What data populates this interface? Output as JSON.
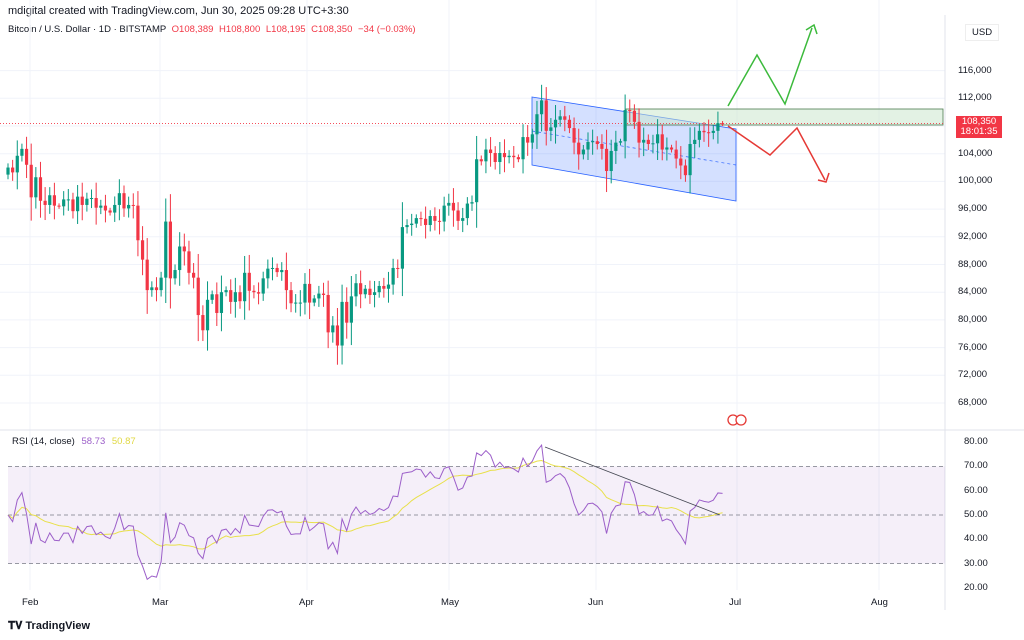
{
  "header": {
    "credit": "mdigital created with TradingView.com, Jun 30, 2025 09:28 UTC+3:30"
  },
  "legend": {
    "symbol": "Bitcoin / U.S. Dollar · 1D · BITSTAMP",
    "open": "O108,389",
    "high": "H108,800",
    "low": "L108,195",
    "close": "C108,350",
    "change": "−34 (−0.03%)"
  },
  "price_scale": {
    "currency": "USD",
    "ticks": [
      "116,000",
      "112,000",
      "104,000",
      "100,000",
      "96,000",
      "92,000",
      "88,000",
      "84,000",
      "80,000",
      "76,000",
      "72,000",
      "68,000"
    ],
    "last_price": "108,350",
    "countdown": "18:01:35"
  },
  "rsi": {
    "label": "RSI (14, close)",
    "value": "58.73",
    "ma_value": "50.87",
    "ticks": [
      "80.00",
      "70.00",
      "60.00",
      "50.00",
      "40.00",
      "30.00",
      "20.00"
    ]
  },
  "time_axis": [
    "Feb",
    "Mar",
    "Apr",
    "May",
    "Jun",
    "Jul",
    "Aug"
  ],
  "footer": {
    "brand": "TradingView"
  },
  "colors": {
    "up": "#089981",
    "down": "#f23645",
    "rsi": "#9c5fc9",
    "rsi_ma": "#e8e04a",
    "channel": "#2962ff"
  },
  "chart_data": {
    "type": "candlestick",
    "start_date": "2025-01-27",
    "interval": "1D",
    "closes_k": [
      102.0,
      101.3,
      103.7,
      104.7,
      102.4,
      97.7,
      100.6,
      97.2,
      96.6,
      98.0,
      96.5,
      96.4,
      97.4,
      97.4,
      95.7,
      97.8,
      96.6,
      97.5,
      97.6,
      96.2,
      96.5,
      95.8,
      95.5,
      96.6,
      98.3,
      96.1,
      96.6,
      96.5,
      91.5,
      88.7,
      84.3,
      84.7,
      84.3,
      86.1,
      94.2,
      86.0,
      87.2,
      90.6,
      89.9,
      86.8,
      86.1,
      80.7,
      78.5,
      82.9,
      83.7,
      81.0,
      84.0,
      84.3,
      82.6,
      84.0,
      82.7,
      86.8,
      84.2,
      84.0,
      83.8,
      86.0,
      87.4,
      87.5,
      86.9,
      87.2,
      84.3,
      82.4,
      82.5,
      82.5,
      85.2,
      82.5,
      83.1,
      83.8,
      83.6,
      78.2,
      79.2,
      76.3,
      82.6,
      79.6,
      83.4,
      85.3,
      83.7,
      84.5,
      83.6,
      84.0,
      84.9,
      84.5,
      85.1,
      87.5,
      87.4,
      93.4,
      93.7,
      93.9,
      94.7,
      94.6,
      93.7,
      95.0,
      94.3,
      94.2,
      96.5,
      96.9,
      95.8,
      94.3,
      94.7,
      96.8,
      97.0,
      103.2,
      102.9,
      104.6,
      104.1,
      102.8,
      104.1,
      103.5,
      103.7,
      103.5,
      103.2,
      106.4,
      105.6,
      106.8,
      109.7,
      111.7,
      107.3,
      107.8,
      108.9,
      109.4,
      108.9,
      107.7,
      105.6,
      103.9,
      104.6,
      105.7,
      105.8,
      105.4,
      104.7,
      101.5,
      104.4,
      105.6,
      105.8,
      110.3,
      110.2,
      108.6,
      105.6,
      106.0,
      105.4,
      105.5,
      106.8,
      104.6,
      104.9,
      104.6,
      103.3,
      102.3,
      100.9,
      105.4,
      106.0,
      107.3,
      107.1,
      107.0,
      107.3,
      108.4,
      108.35
    ],
    "ylim": [
      66000,
      120000
    ],
    "rsi_levels": [
      30,
      70
    ]
  }
}
